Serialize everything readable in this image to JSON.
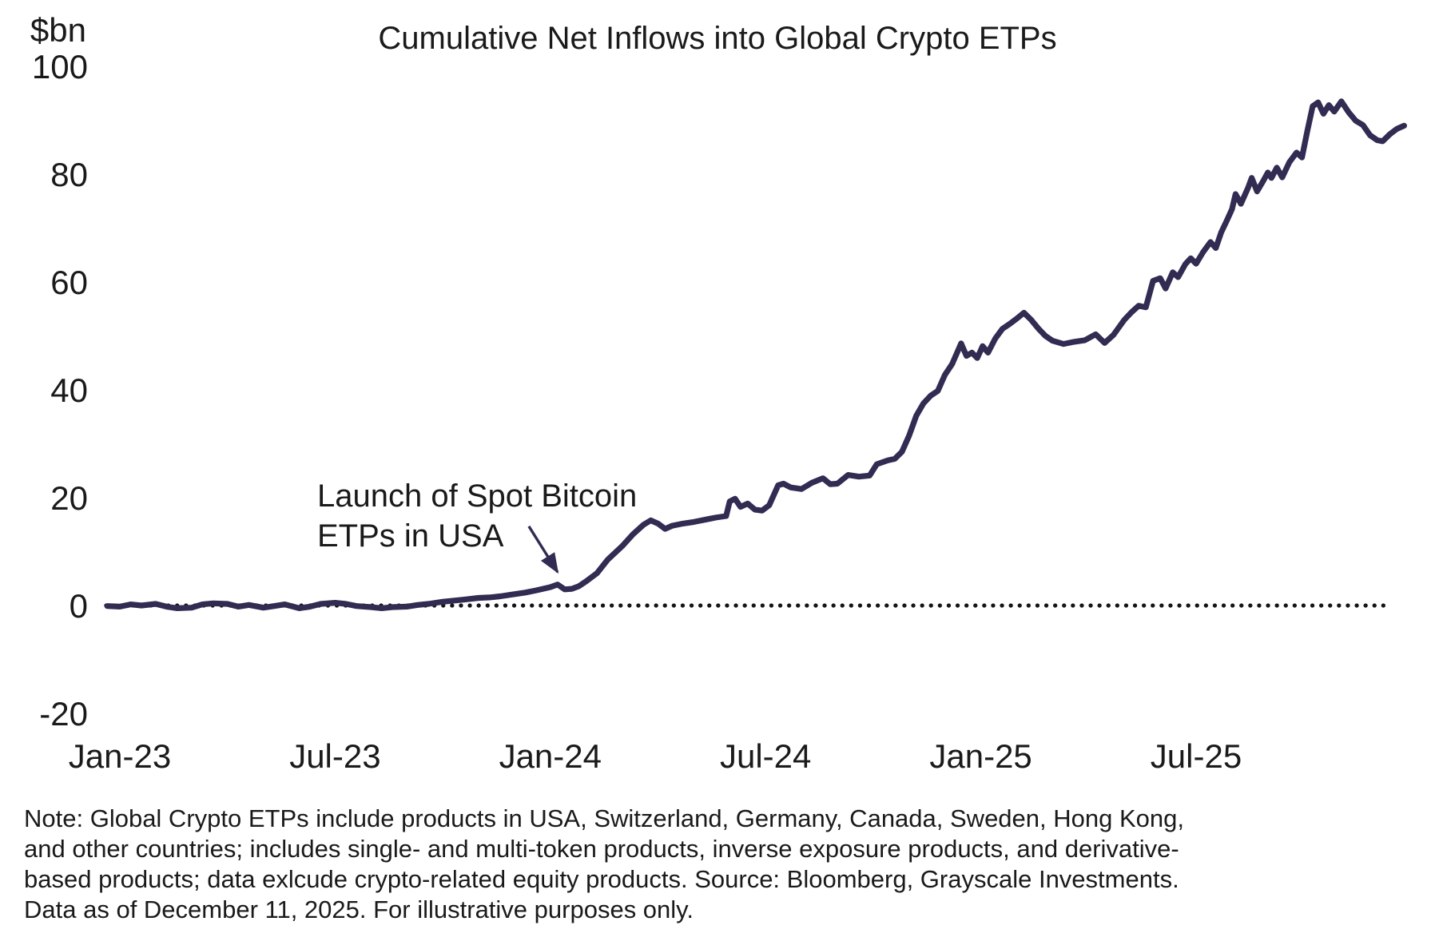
{
  "title": "Cumulative Net Inflows into Global Crypto ETPs",
  "y_axis": {
    "unit_label": "$bn",
    "ticks": [
      100,
      80,
      60,
      40,
      20,
      0,
      -20
    ]
  },
  "x_axis": {
    "ticks": [
      "Jan-23",
      "Jul-23",
      "Jan-24",
      "Jul-24",
      "Jan-25",
      "Jul-25"
    ],
    "tick_months": [
      0,
      6,
      12,
      18,
      24,
      30
    ]
  },
  "annotation": {
    "line1": "Launch of Spot Bitcoin",
    "line2": "ETPs in USA"
  },
  "note_lines": [
    "Note: Global Crypto ETPs include products in USA, Switzerland, Germany, Canada, Sweden, Hong Kong,",
    "and other countries; includes single- and multi-token products, inverse exposure products, and derivative-",
    "based products; data exlcude crypto-related equity products. Source: Bloomberg, Grayscale Investments.",
    "Data as of December 11, 2025. For illustrative purposes only."
  ],
  "chart_data": {
    "type": "line",
    "title": "Cumulative Net Inflows into Global Crypto ETPs",
    "xlabel": "",
    "ylabel": "$bn",
    "ylim": [
      -20,
      100
    ],
    "x_unit": "months since Jan-2023",
    "x_tick_labels": [
      "Jan-23",
      "Jul-23",
      "Jan-24",
      "Jul-24",
      "Jan-25",
      "Jul-25"
    ],
    "grid": false,
    "legend_position": "none",
    "line_color": "#322b52",
    "zero_line": {
      "style": "dotted",
      "color": "#15151a",
      "x_range_months": [
        -0.38,
        35.4
      ]
    },
    "annotation": {
      "text": "Launch of Spot Bitcoin ETPs in USA",
      "arrow_from": [
        11.4,
        14.7
      ],
      "arrow_to": [
        12.2,
        6.2
      ]
    },
    "series": [
      {
        "name": "Cumulative net inflows ($bn)",
        "points": [
          [
            -0.35,
            -0.1
          ],
          [
            0,
            -0.2
          ],
          [
            0.3,
            0.2
          ],
          [
            0.6,
            0.0
          ],
          [
            1,
            0.3
          ],
          [
            1.3,
            -0.2
          ],
          [
            1.6,
            -0.5
          ],
          [
            2,
            -0.4
          ],
          [
            2.3,
            0.2
          ],
          [
            2.6,
            0.4
          ],
          [
            3,
            0.3
          ],
          [
            3.3,
            -0.2
          ],
          [
            3.6,
            0.1
          ],
          [
            4,
            -0.4
          ],
          [
            4.3,
            -0.1
          ],
          [
            4.6,
            0.2
          ],
          [
            5,
            -0.5
          ],
          [
            5.3,
            -0.2
          ],
          [
            5.6,
            0.3
          ],
          [
            6,
            0.5
          ],
          [
            6.3,
            0.3
          ],
          [
            6.6,
            -0.1
          ],
          [
            7,
            -0.3
          ],
          [
            7.3,
            -0.5
          ],
          [
            7.6,
            -0.3
          ],
          [
            8,
            -0.2
          ],
          [
            8.3,
            0.1
          ],
          [
            8.6,
            0.3
          ],
          [
            9,
            0.7
          ],
          [
            9.3,
            0.9
          ],
          [
            9.6,
            1.1
          ],
          [
            10,
            1.4
          ],
          [
            10.3,
            1.5
          ],
          [
            10.6,
            1.7
          ],
          [
            11,
            2.1
          ],
          [
            11.3,
            2.4
          ],
          [
            11.6,
            2.8
          ],
          [
            12,
            3.4
          ],
          [
            12.2,
            3.9
          ],
          [
            12.4,
            3.0
          ],
          [
            12.6,
            3.1
          ],
          [
            12.8,
            3.6
          ],
          [
            13,
            4.5
          ],
          [
            13.3,
            6.0
          ],
          [
            13.6,
            8.5
          ],
          [
            14,
            11.0
          ],
          [
            14.3,
            13.2
          ],
          [
            14.6,
            15.0
          ],
          [
            14.8,
            15.8
          ],
          [
            15,
            15.2
          ],
          [
            15.2,
            14.2
          ],
          [
            15.4,
            14.8
          ],
          [
            15.7,
            15.2
          ],
          [
            16,
            15.5
          ],
          [
            16.3,
            15.9
          ],
          [
            16.6,
            16.3
          ],
          [
            16.9,
            16.6
          ],
          [
            17,
            19.3
          ],
          [
            17.15,
            19.8
          ],
          [
            17.3,
            18.3
          ],
          [
            17.5,
            18.9
          ],
          [
            17.7,
            17.8
          ],
          [
            17.9,
            17.6
          ],
          [
            18.1,
            18.6
          ],
          [
            18.35,
            22.3
          ],
          [
            18.5,
            22.6
          ],
          [
            18.7,
            21.9
          ],
          [
            19,
            21.6
          ],
          [
            19.3,
            22.8
          ],
          [
            19.6,
            23.6
          ],
          [
            19.8,
            22.5
          ],
          [
            20,
            22.6
          ],
          [
            20.3,
            24.2
          ],
          [
            20.6,
            23.9
          ],
          [
            20.9,
            24.1
          ],
          [
            21.1,
            26.2
          ],
          [
            21.4,
            26.9
          ],
          [
            21.6,
            27.2
          ],
          [
            21.8,
            28.5
          ],
          [
            22,
            31.5
          ],
          [
            22.2,
            35.2
          ],
          [
            22.4,
            37.5
          ],
          [
            22.6,
            38.9
          ],
          [
            22.8,
            39.8
          ],
          [
            23,
            42.8
          ],
          [
            23.2,
            44.8
          ],
          [
            23.45,
            48.6
          ],
          [
            23.6,
            46.3
          ],
          [
            23.75,
            46.9
          ],
          [
            23.9,
            45.9
          ],
          [
            24.05,
            48.1
          ],
          [
            24.2,
            46.9
          ],
          [
            24.4,
            49.5
          ],
          [
            24.6,
            51.3
          ],
          [
            24.8,
            52.2
          ],
          [
            25,
            53.2
          ],
          [
            25.2,
            54.3
          ],
          [
            25.4,
            53.0
          ],
          [
            25.6,
            51.4
          ],
          [
            25.8,
            50.0
          ],
          [
            26,
            49.1
          ],
          [
            26.3,
            48.5
          ],
          [
            26.6,
            48.9
          ],
          [
            26.9,
            49.2
          ],
          [
            27.2,
            50.3
          ],
          [
            27.45,
            48.7
          ],
          [
            27.7,
            50.2
          ],
          [
            28,
            53.0
          ],
          [
            28.2,
            54.4
          ],
          [
            28.4,
            55.6
          ],
          [
            28.6,
            55.3
          ],
          [
            28.8,
            60.2
          ],
          [
            29,
            60.7
          ],
          [
            29.15,
            58.8
          ],
          [
            29.35,
            61.8
          ],
          [
            29.5,
            60.9
          ],
          [
            29.7,
            63.3
          ],
          [
            29.85,
            64.4
          ],
          [
            30,
            63.4
          ],
          [
            30.2,
            65.6
          ],
          [
            30.4,
            67.4
          ],
          [
            30.55,
            66.3
          ],
          [
            30.7,
            69.2
          ],
          [
            30.85,
            71.3
          ],
          [
            31,
            73.5
          ],
          [
            31.1,
            76.3
          ],
          [
            31.25,
            74.5
          ],
          [
            31.45,
            77.5
          ],
          [
            31.55,
            79.3
          ],
          [
            31.7,
            76.8
          ],
          [
            31.85,
            78.5
          ],
          [
            32,
            80.3
          ],
          [
            32.1,
            79.3
          ],
          [
            32.25,
            81.2
          ],
          [
            32.4,
            79.4
          ],
          [
            32.6,
            82.2
          ],
          [
            32.8,
            84.0
          ],
          [
            32.95,
            83.1
          ],
          [
            33.1,
            88.0
          ],
          [
            33.25,
            92.6
          ],
          [
            33.4,
            93.3
          ],
          [
            33.55,
            91.2
          ],
          [
            33.7,
            92.8
          ],
          [
            33.85,
            91.6
          ],
          [
            34.05,
            93.5
          ],
          [
            34.25,
            91.5
          ],
          [
            34.45,
            89.9
          ],
          [
            34.65,
            89.1
          ],
          [
            34.85,
            87.2
          ],
          [
            35.05,
            86.3
          ],
          [
            35.2,
            86.1
          ],
          [
            35.4,
            87.4
          ],
          [
            35.6,
            88.4
          ],
          [
            35.8,
            89.0
          ]
        ]
      }
    ]
  }
}
